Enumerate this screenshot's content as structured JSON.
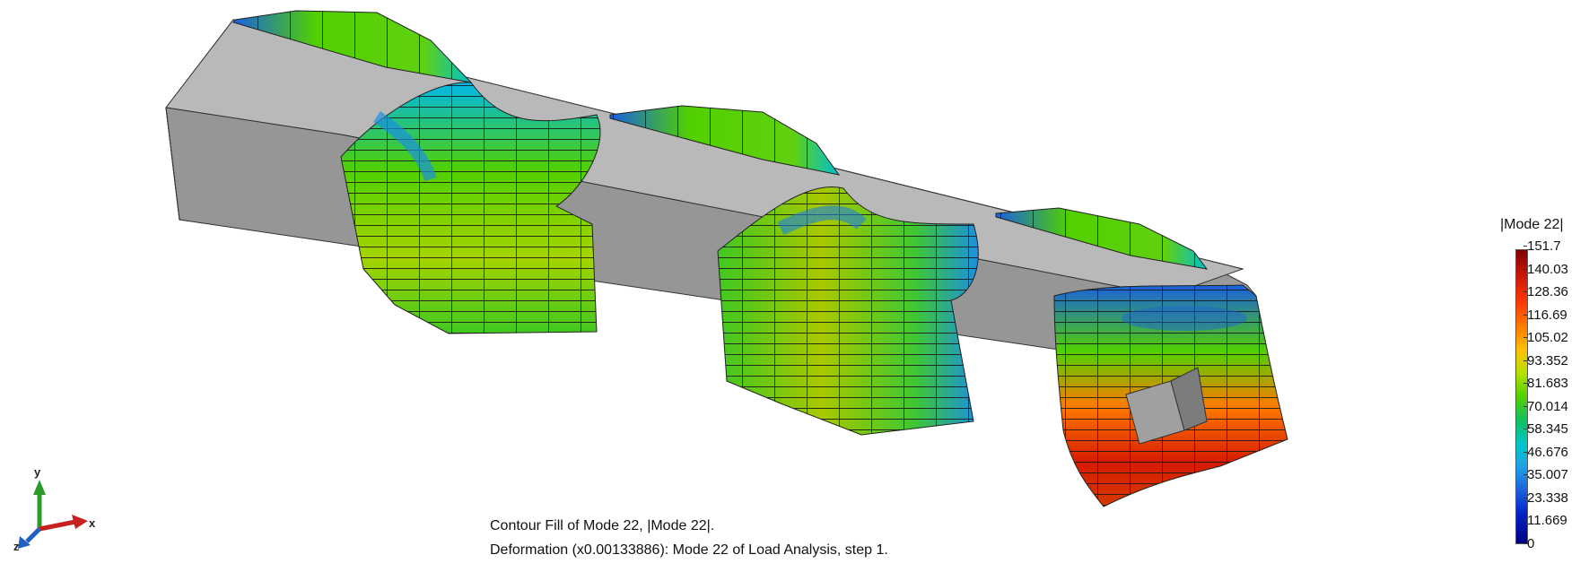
{
  "legend": {
    "title": "|Mode 22|",
    "ticks": [
      "151.7",
      "140.03",
      "128.36",
      "116.69",
      "105.02",
      "93.352",
      "81.683",
      "70.014",
      "58.345",
      "46.676",
      "35.007",
      "23.338",
      "11.669",
      "0"
    ]
  },
  "caption": {
    "line1": "Contour Fill of Mode 22, |Mode 22|.",
    "line2": "Deformation (x0.00133886): Mode 22 of Load Analysis, step 1."
  },
  "triad": {
    "x": "x",
    "y": "y",
    "z": "z"
  },
  "colors": {
    "body_light": "#b8b8b8",
    "body_dark": "#8f8f8f",
    "contour_high": "#d71a00",
    "contour_mid": "#52d000",
    "contour_low": "#1a60e0"
  }
}
